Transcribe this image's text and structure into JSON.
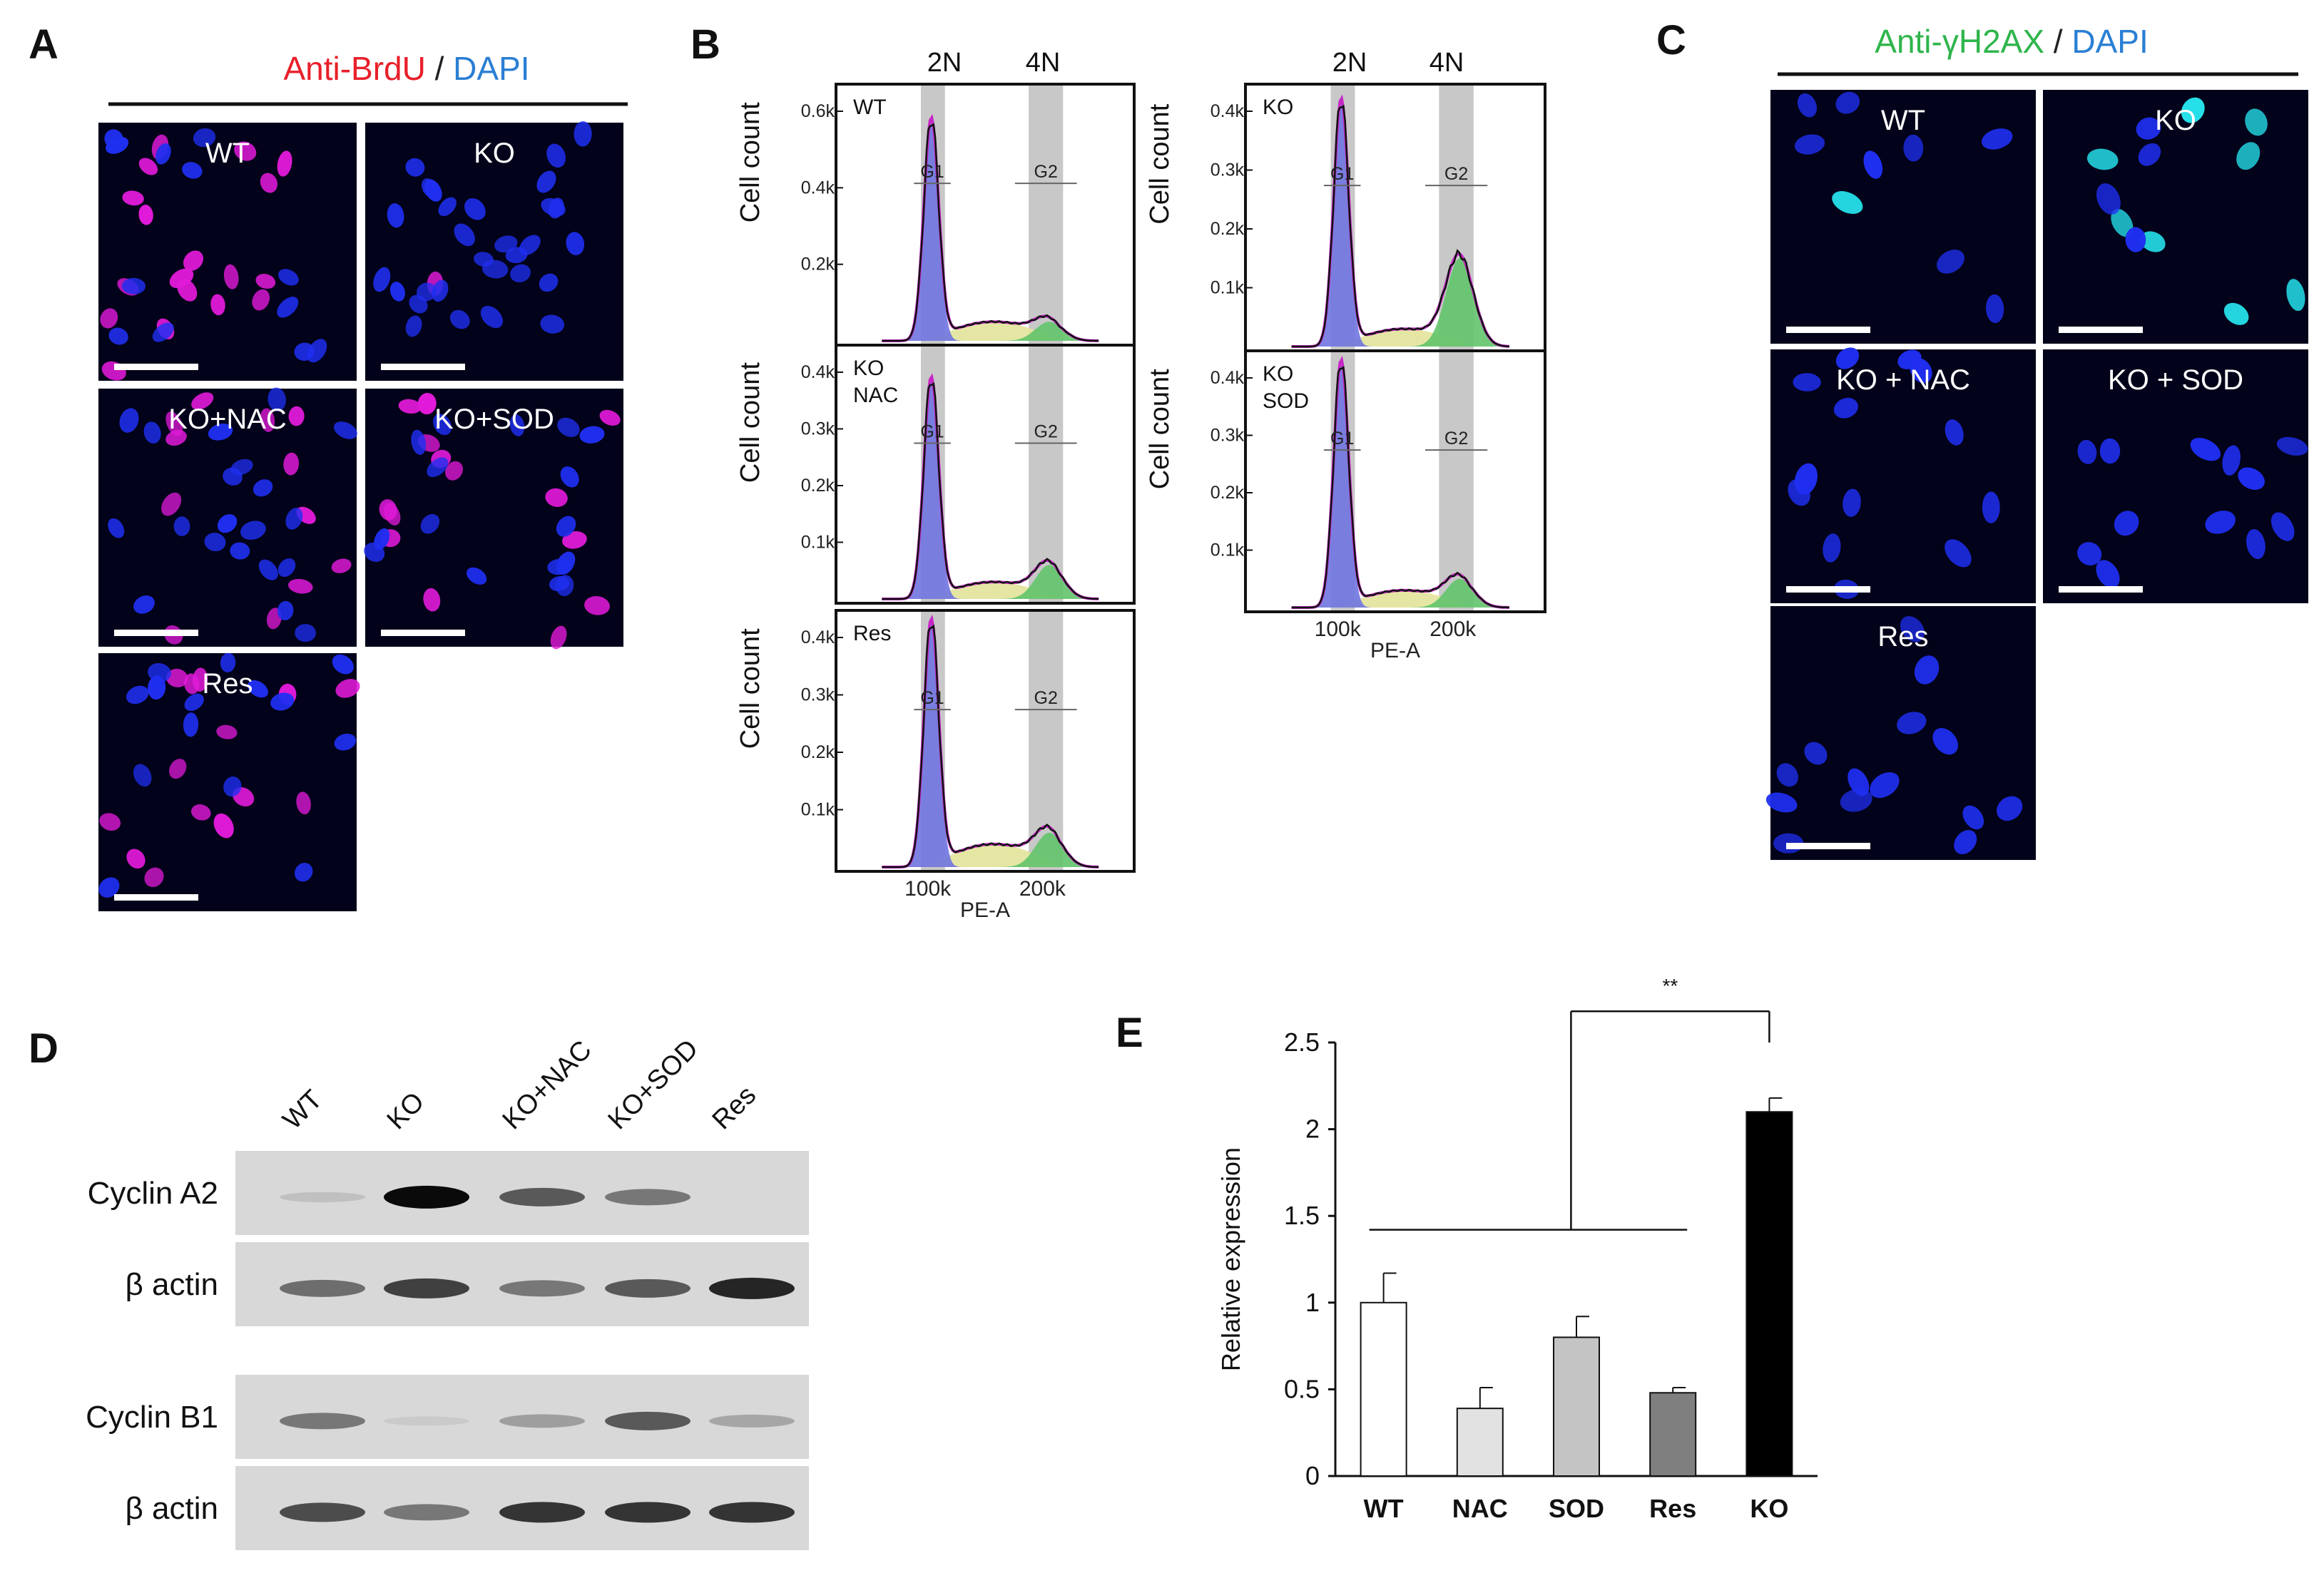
{
  "panel_labels": [
    "A",
    "B",
    "C",
    "D",
    "E"
  ],
  "panel_a": {
    "title_part1": "Anti-BrdU",
    "title_sep": " / ",
    "title_part2": "DAPI",
    "title_color1": "#e8202a",
    "title_color2": "#2a7fd4",
    "tiles": [
      "WT",
      "KO",
      "KO+NAC",
      "KO+SOD",
      "Res"
    ],
    "brdu_positive_nuclei": [
      18,
      1,
      12,
      14,
      14
    ],
    "total_nuclei": [
      30,
      30,
      32,
      30,
      28
    ]
  },
  "panel_b": {
    "header_2n": "2N",
    "header_4n": "4N",
    "y_label": "Cell count",
    "x_label": "PE-A",
    "x_ticks": [
      "100k",
      "200k"
    ],
    "gate_g1": "G1",
    "gate_g2": "G2",
    "colors": {
      "g1": "#6f74e0",
      "s": "#e3e39a",
      "g2": "#62c46a",
      "fit": "#c628c6",
      "raw": "#111111",
      "gate": "#c8c8c8"
    },
    "histograms": [
      {
        "label_lines": [
          "WT"
        ],
        "y_ticks": [
          "0.6k",
          "0.4k",
          "0.2k"
        ],
        "y_max": 0.6,
        "g1_peak": 0.58,
        "s_level": 0.05,
        "g2_peak": 0.05
      },
      {
        "label_lines": [
          "KO",
          "NAC"
        ],
        "y_ticks": [
          "0.4k",
          "0.3k",
          "0.2k",
          "0.1k"
        ],
        "y_max": 0.4,
        "g1_peak": 0.39,
        "s_level": 0.03,
        "g2_peak": 0.06
      },
      {
        "label_lines": [
          "Res"
        ],
        "y_ticks": [
          "0.4k",
          "0.3k",
          "0.2k",
          "0.1k"
        ],
        "y_max": 0.4,
        "g1_peak": 0.43,
        "s_level": 0.04,
        "g2_peak": 0.06
      },
      {
        "label_lines": [
          "KO"
        ],
        "y_ticks": [
          "0.4k",
          "0.3k",
          "0.2k",
          "0.1k"
        ],
        "y_max": 0.4,
        "g1_peak": 0.42,
        "s_level": 0.03,
        "g2_peak": 0.15
      },
      {
        "label_lines": [
          "KO",
          "SOD"
        ],
        "y_ticks": [
          "0.4k",
          "0.3k",
          "0.2k",
          "0.1k"
        ],
        "y_max": 0.4,
        "g1_peak": 0.43,
        "s_level": 0.03,
        "g2_peak": 0.05
      }
    ]
  },
  "panel_c": {
    "title_part1": "Anti-γH2AX",
    "title_sep": " / ",
    "title_part2": "DAPI",
    "title_color1": "#2fb54c",
    "title_color2": "#2a7fd4",
    "tiles": [
      "WT",
      "KO",
      "KO + NAC",
      "KO + SOD",
      "Res"
    ],
    "gh2ax_positive_nuclei": [
      1,
      8,
      0,
      0,
      0
    ],
    "total_nuclei": [
      9,
      12,
      13,
      12,
      14
    ]
  },
  "panel_d": {
    "lanes": [
      "WT",
      "KO",
      "KO+NAC",
      "KO+SOD",
      "Res"
    ],
    "rows": [
      {
        "label": "Cyclin A2",
        "intensities": [
          0.12,
          1.0,
          0.7,
          0.55,
          0.0
        ]
      },
      {
        "label": "β actin",
        "intensities": [
          0.6,
          0.8,
          0.55,
          0.7,
          0.9
        ]
      },
      {
        "label": "Cyclin B1",
        "intensities": [
          0.55,
          0.05,
          0.35,
          0.7,
          0.3
        ]
      },
      {
        "label": "β actin",
        "intensities": [
          0.75,
          0.55,
          0.85,
          0.85,
          0.85
        ]
      }
    ]
  },
  "panel_e": {
    "significance": "**",
    "chart_data": {
      "type": "bar",
      "categories": [
        "WT",
        "NAC",
        "SOD",
        "Res",
        "KO"
      ],
      "values": [
        1.0,
        0.39,
        0.8,
        0.48,
        2.1
      ],
      "errors": [
        0.17,
        0.12,
        0.12,
        0.03,
        0.08
      ],
      "colors": [
        "#ffffff",
        "#e2e2e2",
        "#c4c4c4",
        "#7f7f7f",
        "#000000"
      ],
      "ylabel": "Relative expression",
      "ylim": [
        0,
        2.5
      ],
      "yticks": [
        "0",
        "0.5",
        "1",
        "1.5",
        "2",
        "2.5"
      ],
      "grid": false
    }
  }
}
